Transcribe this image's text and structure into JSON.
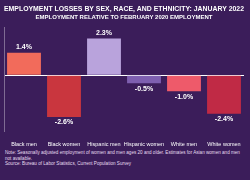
{
  "chart_data": {
    "type": "bar",
    "title": "EMPLOYMENT LOSSES BY SEX, RACE, AND ETHNICITY: JANUARY 2022",
    "subtitle": "EMPLOYMENT RELATIVE TO FEBRUARY 2020 EMPLOYMENT",
    "categories": [
      "Black men",
      "Black women",
      "Hispanic men",
      "Hispanic women",
      "White men",
      "White women"
    ],
    "values": [
      1.4,
      -2.6,
      2.3,
      -0.5,
      -1.0,
      -2.4
    ],
    "value_labels": [
      "1.4%",
      "-2.6%",
      "2.3%",
      "-0.5%",
      "-1.0%",
      "-2.4%"
    ],
    "colors": [
      "#f26b5b",
      "#c9363e",
      "#b9a3dc",
      "#7e5fb0",
      "#ee5a6a",
      "#c02a45"
    ],
    "ylim": [
      -3.5,
      3
    ],
    "yticks": [
      0
    ],
    "grid": false,
    "data_labels": true,
    "tick_labels": "x",
    "note": "Note: Seasonally adjusted employment of women and men ages 20 and older. Estimates for Asian women and men not available.",
    "source": "Source: Bureau of Labor Statistics, Current Population Survey"
  }
}
